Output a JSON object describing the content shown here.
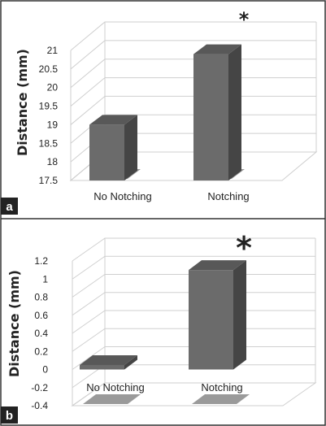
{
  "colors": {
    "bar_front": "#6b6b6b",
    "bar_side": "#454545",
    "bar_top": "#585858",
    "bar_shadow": "#9a9a9a",
    "wall": "#cfcfcf",
    "frame": "#333333",
    "panel_label_bg": "#222222",
    "panel_label_text": "#ffffff"
  },
  "chart_data": [
    {
      "panel": "a",
      "type": "bar",
      "style": "3d",
      "categories": [
        "No Notching",
        "Notching"
      ],
      "values": [
        19.0,
        20.9
      ],
      "ylabel": "Distance (mm)",
      "ylim": [
        17.5,
        21
      ],
      "yticks": [
        "17.5",
        "18",
        "18.5",
        "19",
        "19.5",
        "20",
        "20.5",
        "21"
      ],
      "annotations": [
        {
          "category": "Notching",
          "text": "*"
        }
      ],
      "grid": true,
      "legend": "none"
    },
    {
      "panel": "b",
      "type": "bar",
      "style": "3d",
      "categories": [
        "No Notching",
        "Notching"
      ],
      "values": [
        0.05,
        1.1
      ],
      "ylabel": "Distance (mm)",
      "ylim": [
        -0.4,
        1.2
      ],
      "yticks": [
        "-0.4",
        "-0.2",
        "0",
        "0.2",
        "0.4",
        "0.6",
        "0.8",
        "1",
        "1.2"
      ],
      "annotations": [
        {
          "category": "Notching",
          "text": "*"
        }
      ],
      "grid": true,
      "legend": "none"
    }
  ]
}
